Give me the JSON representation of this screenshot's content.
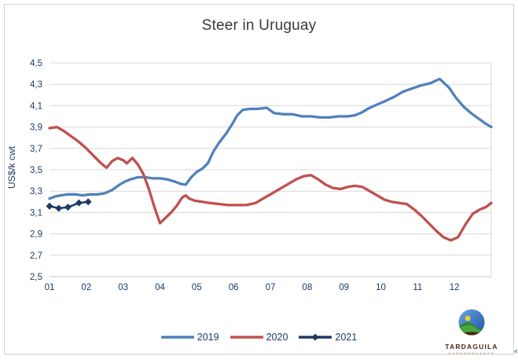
{
  "frame": {
    "border_color": "#d2d2d2",
    "background": "#ffffff"
  },
  "chart_data": {
    "type": "line",
    "title": "Steer in Uruguay",
    "xlabel": "",
    "ylabel": "US$/k cwt",
    "ylim": [
      2.5,
      4.5
    ],
    "ytick_step": 0.2,
    "ytick_values": [
      4.5,
      4.3,
      4.1,
      3.9,
      3.7,
      3.5,
      3.3,
      3.1,
      2.9,
      2.7,
      2.5
    ],
    "ytick_labels": [
      "4,5",
      "4,3",
      "4,1",
      "3,9",
      "3,7",
      "3,5",
      "3,3",
      "3,1",
      "2,9",
      "2,7",
      "2,5"
    ],
    "xlim": [
      1,
      13
    ],
    "xtick_values": [
      1,
      2,
      3,
      4,
      5,
      6,
      7,
      8,
      9,
      10,
      11,
      12
    ],
    "xtick_labels": [
      "01",
      "02",
      "03",
      "04",
      "05",
      "06",
      "07",
      "08",
      "09",
      "10",
      "11",
      "12"
    ],
    "decimal_separator": ",",
    "grid": "horizontal",
    "gridline_color": "#d9d9d9",
    "axis_line_color": "#c9c9c9",
    "axis_text_color": "#1f3864",
    "title_color": "#3a3a3a",
    "legend_position": "bottom",
    "series": [
      {
        "name": "2019",
        "color": "#4f81bd",
        "marker": "none",
        "points": [
          [
            1.0,
            3.23
          ],
          [
            1.15,
            3.25
          ],
          [
            1.3,
            3.26
          ],
          [
            1.5,
            3.27
          ],
          [
            1.7,
            3.27
          ],
          [
            1.9,
            3.26
          ],
          [
            2.1,
            3.27
          ],
          [
            2.3,
            3.27
          ],
          [
            2.5,
            3.28
          ],
          [
            2.7,
            3.31
          ],
          [
            2.9,
            3.36
          ],
          [
            3.05,
            3.39
          ],
          [
            3.2,
            3.41
          ],
          [
            3.4,
            3.43
          ],
          [
            3.6,
            3.43
          ],
          [
            3.8,
            3.42
          ],
          [
            4.0,
            3.42
          ],
          [
            4.2,
            3.41
          ],
          [
            4.4,
            3.39
          ],
          [
            4.55,
            3.37
          ],
          [
            4.7,
            3.36
          ],
          [
            4.85,
            3.43
          ],
          [
            5.0,
            3.48
          ],
          [
            5.15,
            3.51
          ],
          [
            5.3,
            3.56
          ],
          [
            5.45,
            3.67
          ],
          [
            5.6,
            3.75
          ],
          [
            5.8,
            3.84
          ],
          [
            5.95,
            3.92
          ],
          [
            6.1,
            4.01
          ],
          [
            6.25,
            4.06
          ],
          [
            6.45,
            4.07
          ],
          [
            6.65,
            4.07
          ],
          [
            6.9,
            4.08
          ],
          [
            7.1,
            4.03
          ],
          [
            7.35,
            4.02
          ],
          [
            7.6,
            4.02
          ],
          [
            7.85,
            4.0
          ],
          [
            8.1,
            4.0
          ],
          [
            8.35,
            3.99
          ],
          [
            8.6,
            3.99
          ],
          [
            8.85,
            4.0
          ],
          [
            9.1,
            4.0
          ],
          [
            9.3,
            4.01
          ],
          [
            9.5,
            4.04
          ],
          [
            9.7,
            4.08
          ],
          [
            9.9,
            4.11
          ],
          [
            10.1,
            4.14
          ],
          [
            10.35,
            4.18
          ],
          [
            10.6,
            4.23
          ],
          [
            10.85,
            4.26
          ],
          [
            11.1,
            4.29
          ],
          [
            11.35,
            4.31
          ],
          [
            11.6,
            4.35
          ],
          [
            11.85,
            4.27
          ],
          [
            12.05,
            4.17
          ],
          [
            12.25,
            4.09
          ],
          [
            12.45,
            4.03
          ],
          [
            12.65,
            3.98
          ],
          [
            12.85,
            3.93
          ],
          [
            13.0,
            3.9
          ]
        ]
      },
      {
        "name": "2020",
        "color": "#c0504d",
        "marker": "none",
        "points": [
          [
            1.0,
            3.89
          ],
          [
            1.2,
            3.9
          ],
          [
            1.4,
            3.86
          ],
          [
            1.6,
            3.81
          ],
          [
            1.8,
            3.76
          ],
          [
            2.0,
            3.7
          ],
          [
            2.2,
            3.63
          ],
          [
            2.4,
            3.56
          ],
          [
            2.55,
            3.52
          ],
          [
            2.7,
            3.58
          ],
          [
            2.85,
            3.61
          ],
          [
            3.0,
            3.59
          ],
          [
            3.1,
            3.56
          ],
          [
            3.25,
            3.61
          ],
          [
            3.4,
            3.55
          ],
          [
            3.55,
            3.46
          ],
          [
            3.7,
            3.32
          ],
          [
            3.85,
            3.15
          ],
          [
            4.0,
            3.0
          ],
          [
            4.15,
            3.05
          ],
          [
            4.3,
            3.1
          ],
          [
            4.45,
            3.16
          ],
          [
            4.6,
            3.24
          ],
          [
            4.7,
            3.26
          ],
          [
            4.8,
            3.23
          ],
          [
            4.95,
            3.21
          ],
          [
            5.15,
            3.2
          ],
          [
            5.35,
            3.19
          ],
          [
            5.6,
            3.18
          ],
          [
            5.85,
            3.17
          ],
          [
            6.1,
            3.17
          ],
          [
            6.35,
            3.17
          ],
          [
            6.6,
            3.19
          ],
          [
            6.8,
            3.23
          ],
          [
            7.0,
            3.27
          ],
          [
            7.2,
            3.31
          ],
          [
            7.45,
            3.36
          ],
          [
            7.7,
            3.41
          ],
          [
            7.9,
            3.44
          ],
          [
            8.1,
            3.45
          ],
          [
            8.3,
            3.41
          ],
          [
            8.5,
            3.36
          ],
          [
            8.7,
            3.33
          ],
          [
            8.9,
            3.32
          ],
          [
            9.1,
            3.34
          ],
          [
            9.3,
            3.35
          ],
          [
            9.5,
            3.34
          ],
          [
            9.7,
            3.3
          ],
          [
            9.9,
            3.26
          ],
          [
            10.1,
            3.22
          ],
          [
            10.3,
            3.2
          ],
          [
            10.5,
            3.19
          ],
          [
            10.7,
            3.18
          ],
          [
            10.9,
            3.13
          ],
          [
            11.1,
            3.07
          ],
          [
            11.3,
            3.0
          ],
          [
            11.5,
            2.93
          ],
          [
            11.7,
            2.87
          ],
          [
            11.9,
            2.84
          ],
          [
            12.1,
            2.87
          ],
          [
            12.3,
            2.99
          ],
          [
            12.5,
            3.09
          ],
          [
            12.7,
            3.13
          ],
          [
            12.85,
            3.15
          ],
          [
            13.0,
            3.19
          ]
        ]
      },
      {
        "name": "2021",
        "color": "#1f3864",
        "marker": "diamond",
        "points": [
          [
            1.0,
            3.16
          ],
          [
            1.25,
            3.14
          ],
          [
            1.5,
            3.15
          ],
          [
            1.8,
            3.19
          ],
          [
            2.05,
            3.2
          ]
        ]
      }
    ]
  },
  "logo": {
    "brand": "TARDAGUILA",
    "subtext": "AGROMERCADOS",
    "brand_color": "#4a2a15",
    "sky_color": "#2f6bbf",
    "hill_color": "#3e9b3a",
    "sun_color": "#f2d129"
  }
}
